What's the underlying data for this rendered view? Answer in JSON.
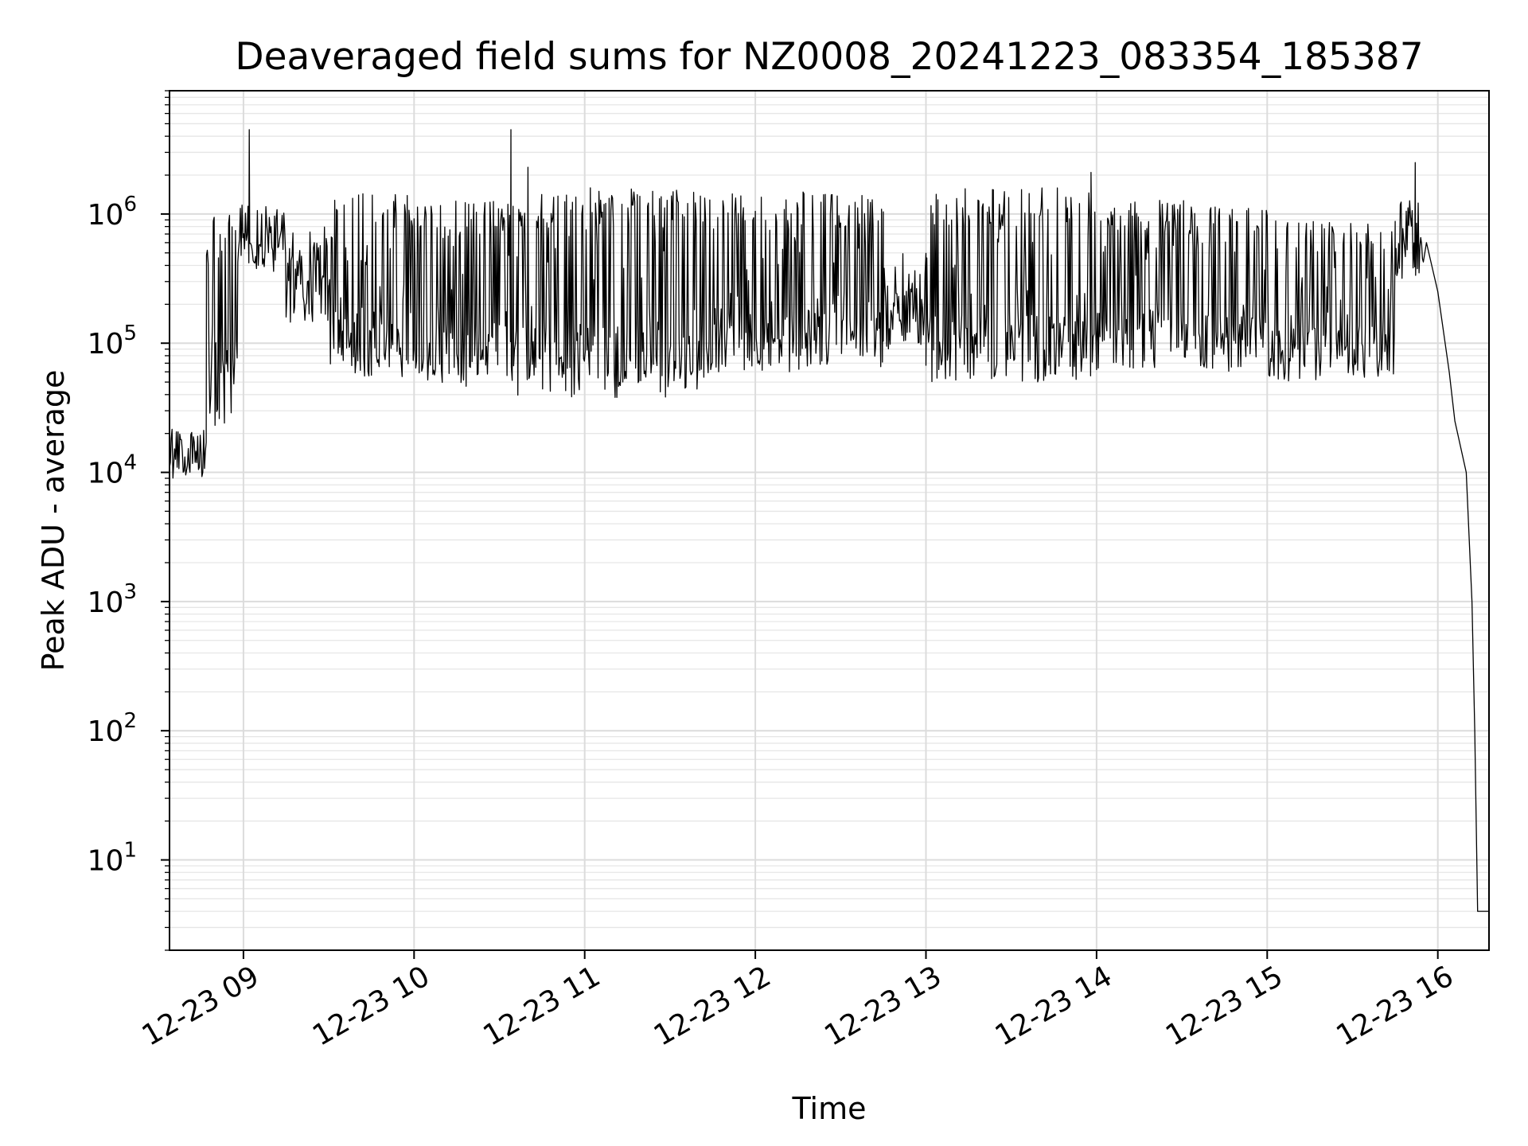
{
  "chart_data": {
    "type": "line",
    "title": "Deaveraged field sums for NZ0008_20241223_083354_185387",
    "xlabel": "Time",
    "ylabel": "Peak ADU - average",
    "yscale": "log",
    "grid": true,
    "grid_minor": true,
    "x_ticks": [
      "12-23 09",
      "12-23 10",
      "12-23 11",
      "12-23 12",
      "12-23 13",
      "12-23 14",
      "12-23 15",
      "12-23 16"
    ],
    "y_ticks": [
      {
        "base": "10",
        "exp": "1"
      },
      {
        "base": "10",
        "exp": "2"
      },
      {
        "base": "10",
        "exp": "3"
      },
      {
        "base": "10",
        "exp": "4"
      },
      {
        "base": "10",
        "exp": "5"
      },
      {
        "base": "10",
        "exp": "6"
      }
    ],
    "xlim": [
      "2024-12-23 08:34",
      "2024-12-23 16:18"
    ],
    "ylim": [
      2,
      9000000
    ],
    "series": [
      {
        "color": "#000000",
        "segments": [
          {
            "start": "2024-12-23 08:34",
            "end": "2024-12-23 08:47",
            "low": 9000,
            "high": 22000
          },
          {
            "start": "2024-12-23 08:47",
            "end": "2024-12-23 08:58",
            "low": 20000,
            "high": 1000000
          },
          {
            "start": "2024-12-23 08:58",
            "end": "2024-12-23 09:15",
            "low": 350000,
            "high": 1200000
          },
          {
            "start": "2024-12-23 09:15",
            "end": "2024-12-23 09:30",
            "low": 130000,
            "high": 800000
          },
          {
            "start": "2024-12-23 09:30",
            "end": "2024-12-23 10:00",
            "low": 55000,
            "high": 1500000
          },
          {
            "start": "2024-12-23 10:00",
            "end": "2024-12-23 10:35",
            "low": 45000,
            "high": 1300000
          },
          {
            "start": "2024-12-23 10:35",
            "end": "2024-12-23 11:45",
            "low": 38000,
            "high": 1600000
          },
          {
            "start": "2024-12-23 11:45",
            "end": "2024-12-23 12:45",
            "low": 60000,
            "high": 1500000
          },
          {
            "start": "2024-12-23 12:45",
            "end": "2024-12-23 13:00",
            "low": 90000,
            "high": 500000
          },
          {
            "start": "2024-12-23 13:00",
            "end": "2024-12-23 14:00",
            "low": 50000,
            "high": 1600000
          },
          {
            "start": "2024-12-23 14:00",
            "end": "2024-12-23 15:00",
            "low": 60000,
            "high": 1300000
          },
          {
            "start": "2024-12-23 15:00",
            "end": "2024-12-23 15:45",
            "low": 50000,
            "high": 900000
          },
          {
            "start": "2024-12-23 15:45",
            "end": "2024-12-23 15:55",
            "low": 300000,
            "high": 1300000
          }
        ],
        "spikes": [
          {
            "time": "2024-12-23 09:02",
            "value": 4500000
          },
          {
            "time": "2024-12-23 10:34",
            "value": 4500000
          },
          {
            "time": "2024-12-23 10:40",
            "value": 2300000
          },
          {
            "time": "2024-12-23 15:52",
            "value": 2500000
          },
          {
            "time": "2024-12-23 13:58",
            "value": 2100000
          }
        ],
        "tail": [
          [
            "2024-12-23 15:56",
            600000
          ],
          [
            "2024-12-23 16:00",
            250000
          ],
          [
            "2024-12-23 16:04",
            60000
          ],
          [
            "2024-12-23 16:06",
            25000
          ],
          [
            "2024-12-23 16:10",
            10000
          ],
          [
            "2024-12-23 16:12",
            1000
          ],
          [
            "2024-12-23 16:13",
            100
          ],
          [
            "2024-12-23 16:14",
            4
          ],
          [
            "2024-12-23 16:18",
            4
          ]
        ]
      }
    ]
  }
}
